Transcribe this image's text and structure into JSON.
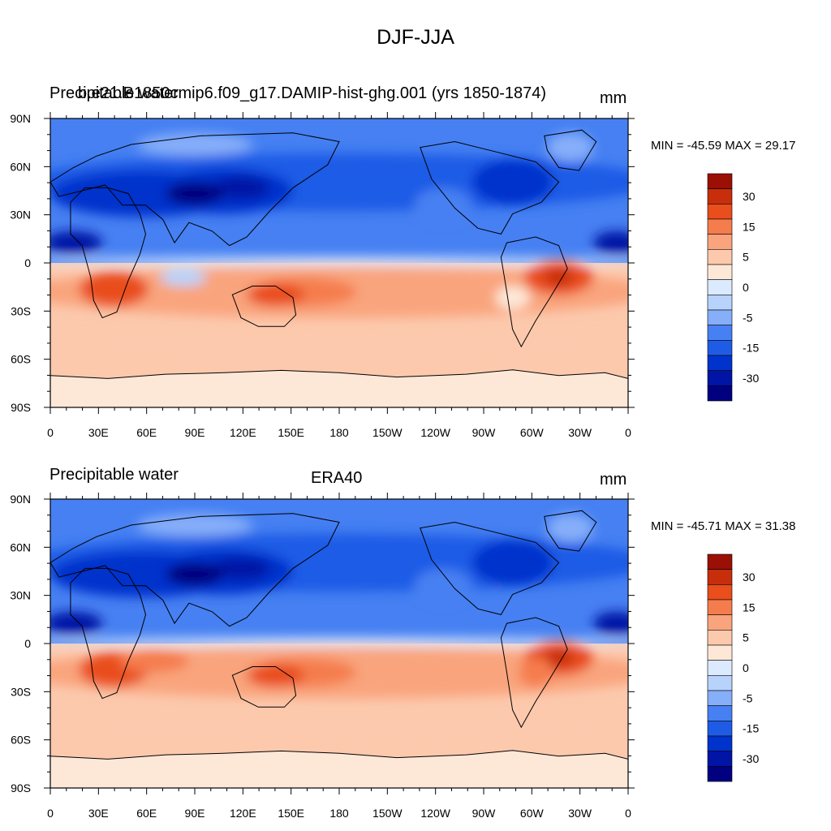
{
  "title": "DJF-JJA",
  "colors": {
    "levels": [
      "#000080",
      "#0014a5",
      "#0033cc",
      "#1f5ce6",
      "#4680f2",
      "#86aef9",
      "#b7d3fc",
      "#dbeafe",
      "#fde8d8",
      "#fcc9ad",
      "#f9a47d",
      "#f57d4d",
      "#e94e1c",
      "#c72e0b",
      "#9a1005"
    ],
    "coast": "#000000",
    "sea_ice_south": "#fde8d8"
  },
  "panels": [
    {
      "left_label": "Precipitable water",
      "center_label": "b.e21.B1850cmip6.f09_g17.DAMIP-hist-ghg.001 (yrs 1850-1874)",
      "right_label": "mm",
      "min_label": "MIN = -45.59",
      "max_label": "MAX =  29.17",
      "min_value": -45.59,
      "max_value": 29.17
    },
    {
      "left_label": "Precipitable water",
      "center_label": "ERA40",
      "right_label": "mm",
      "min_label": "MIN = -45.71",
      "max_label": "MAX =  31.38",
      "min_value": -45.71,
      "max_value": 31.38
    }
  ],
  "x_ticks": [
    "0",
    "30E",
    "60E",
    "90E",
    "120E",
    "150E",
    "180",
    "150W",
    "120W",
    "90W",
    "60W",
    "30W",
    "0"
  ],
  "y_ticks": [
    "90N",
    "60N",
    "30N",
    "0",
    "30S",
    "60S",
    "90S"
  ],
  "colorbar_labels": [
    "30",
    "15",
    "5",
    "0",
    "-5",
    "-15",
    "-30"
  ]
}
